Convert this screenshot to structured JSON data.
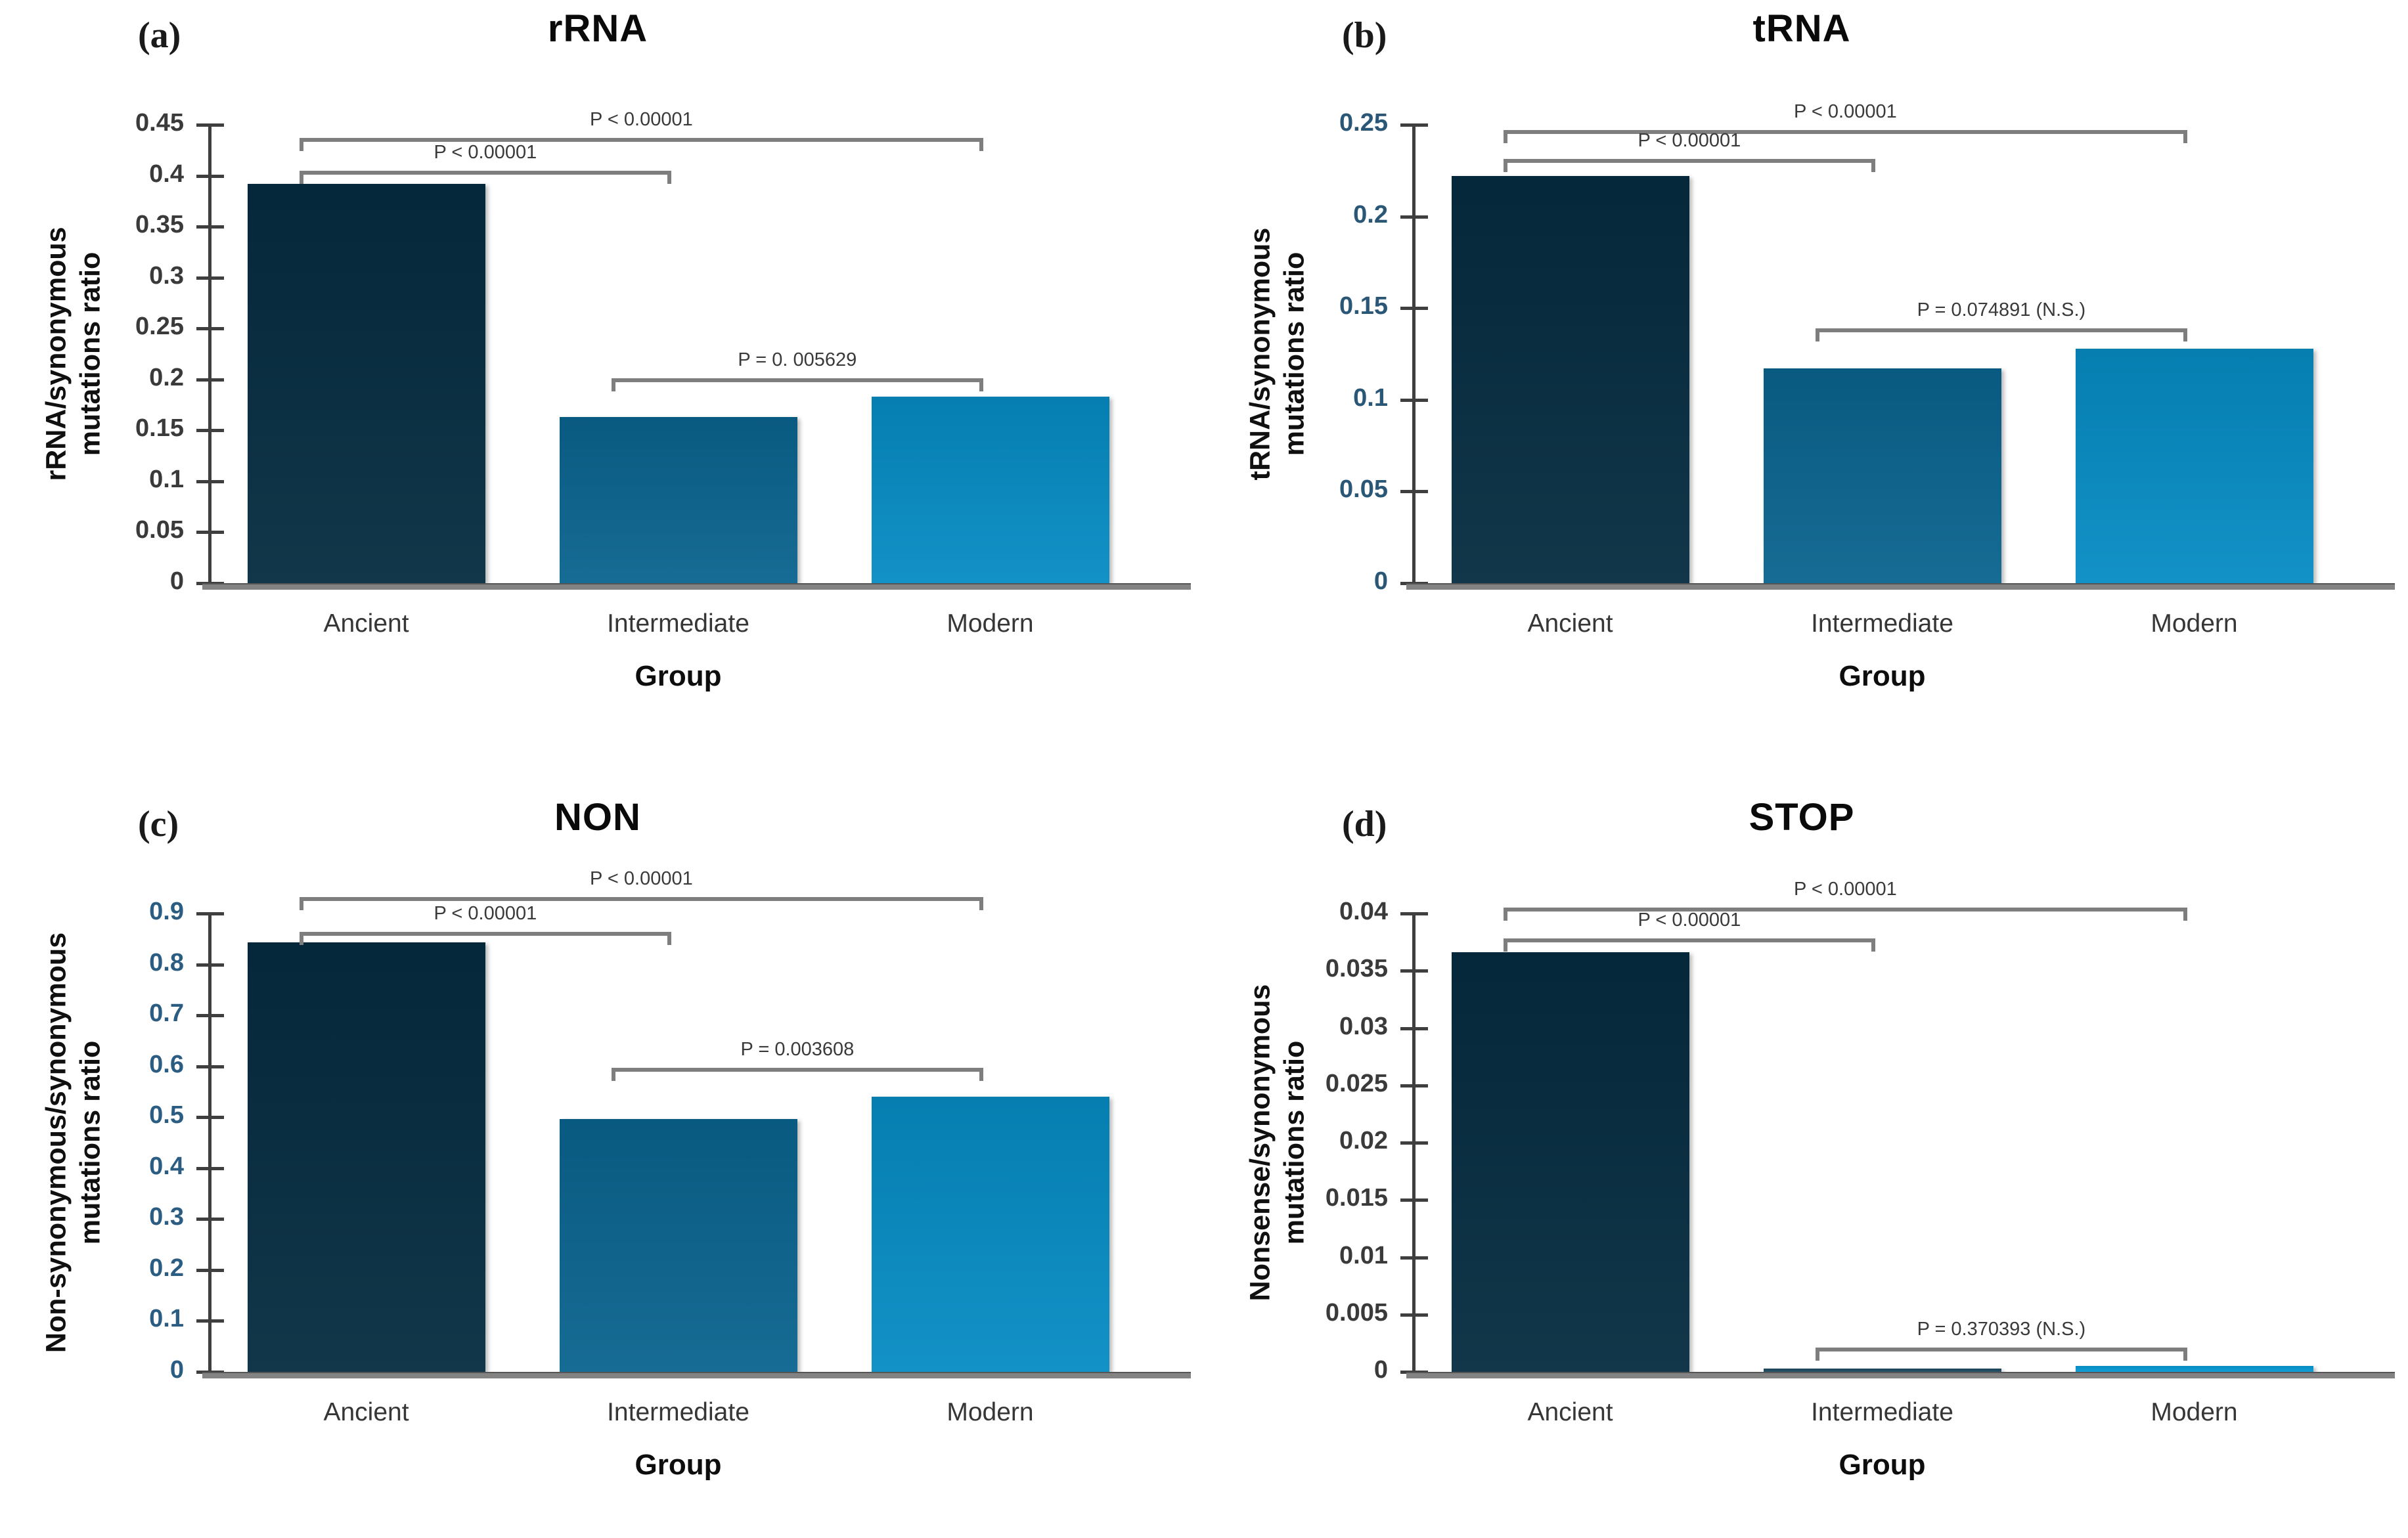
{
  "page": {
    "background_color": "#ffffff"
  },
  "chart_data": [
    {
      "type": "bar",
      "panel_letter": "(a)",
      "title": "rRNA",
      "ylabel": "rRNA/synonymous mutations ratio",
      "ylabel_lines": [
        "rRNA/synonymous",
        "mutations ratio"
      ],
      "xlabel": "Group",
      "categories": [
        "Ancient",
        "Intermediate",
        "Modern"
      ],
      "values": [
        0.392,
        0.163,
        0.183
      ],
      "ylim": [
        0,
        0.45
      ],
      "ytick_values": [
        0,
        0.05,
        0.1,
        0.15,
        0.2,
        0.25,
        0.3,
        0.35,
        0.4,
        0.45
      ],
      "ytick_labels": [
        "0",
        "0.05",
        "0.1",
        "0.15",
        "0.2",
        "0.25",
        "0.3",
        "0.35",
        "0.4",
        "0.45"
      ],
      "tick_label_color": "#3a3a3a",
      "bar_colors": [
        "#052c40",
        "#0a648f",
        "#068cc4"
      ],
      "grid": false,
      "legend": "none",
      "significance_brackets": [
        {
          "from": "Ancient",
          "to": "Modern",
          "label": "P < 0.00001",
          "y": 0.437
        },
        {
          "from": "Ancient",
          "to": "Intermediate",
          "label": "P < 0.00001",
          "y": 0.405
        },
        {
          "from": "Intermediate",
          "to": "Modern",
          "label": "P = 0. 005629",
          "y": 0.201
        }
      ]
    },
    {
      "type": "bar",
      "panel_letter": "(b)",
      "title": "tRNA",
      "ylabel": "tRNA/synonymous mutations ratio",
      "ylabel_lines": [
        "tRNA/synonymous",
        "mutations ratio"
      ],
      "xlabel": "Group",
      "categories": [
        "Ancient",
        "Intermediate",
        "Modern"
      ],
      "values": [
        0.222,
        0.117,
        0.128
      ],
      "ylim": [
        0,
        0.25
      ],
      "ytick_values": [
        0,
        0.05,
        0.1,
        0.15,
        0.2,
        0.25
      ],
      "ytick_labels": [
        "0",
        "0.05",
        "0.1",
        "0.15",
        "0.2",
        "0.25"
      ],
      "tick_label_color": "#2b5777",
      "bar_colors": [
        "#052c40",
        "#0a648f",
        "#068cc4"
      ],
      "grid": false,
      "legend": "none",
      "significance_brackets": [
        {
          "from": "Ancient",
          "to": "Modern",
          "label": "P < 0.00001",
          "y": 0.247
        },
        {
          "from": "Ancient",
          "to": "Intermediate",
          "label": "P < 0.00001",
          "y": 0.2315
        },
        {
          "from": "Intermediate",
          "to": "Modern",
          "label": "P = 0.074891 (N.S.)",
          "y": 0.139
        }
      ]
    },
    {
      "type": "bar",
      "panel_letter": "(c)",
      "title": "NON",
      "ylabel": "Non-synonymous/synonymous mutations ratio",
      "ylabel_lines": [
        "Non-synonymous/synonymous",
        "mutations ratio"
      ],
      "xlabel": "Group",
      "categories": [
        "Ancient",
        "Intermediate",
        "Modern"
      ],
      "values": [
        0.843,
        0.497,
        0.54
      ],
      "ylim": [
        0,
        0.9
      ],
      "ytick_values": [
        0,
        0.1,
        0.2,
        0.3,
        0.4,
        0.5,
        0.6,
        0.7,
        0.8,
        0.9
      ],
      "ytick_labels": [
        "0",
        "0.1",
        "0.2",
        "0.3",
        "0.4",
        "0.5",
        "0.6",
        "0.7",
        "0.8",
        "0.9"
      ],
      "tick_label_color": "#2b5d82",
      "bar_colors": [
        "#052c40",
        "#0a648f",
        "#068cc4"
      ],
      "grid": false,
      "legend": "none",
      "significance_brackets": [
        {
          "from": "Ancient",
          "to": "Modern",
          "label": "P < 0.00001",
          "y": 0.932
        },
        {
          "from": "Ancient",
          "to": "Intermediate",
          "label": "P < 0.00001",
          "y": 0.864
        },
        {
          "from": "Intermediate",
          "to": "Modern",
          "label": "P = 0.003608",
          "y": 0.597
        }
      ]
    },
    {
      "type": "bar",
      "panel_letter": "(d)",
      "title": "STOP",
      "ylabel": "Nonsense/synonymous mutations ratio",
      "ylabel_lines": [
        "Nonsense/synonymous",
        "mutations ratio"
      ],
      "xlabel": "Group",
      "categories": [
        "Ancient",
        "Intermediate",
        "Modern"
      ],
      "values": [
        0.0366,
        0.0002,
        0.0005
      ],
      "ylim": [
        0,
        0.04
      ],
      "ytick_values": [
        0,
        0.005,
        0.01,
        0.015,
        0.02,
        0.025,
        0.03,
        0.035,
        0.04
      ],
      "ytick_labels": [
        "0",
        "0.005",
        "0.01",
        "0.015",
        "0.02",
        "0.025",
        "0.03",
        "0.035",
        "0.04"
      ],
      "tick_label_color": "#3a3a3a",
      "bar_colors": [
        "#052c40",
        "#1d4a62",
        "#069ad6"
      ],
      "grid": false,
      "legend": "none",
      "significance_brackets": [
        {
          "from": "Ancient",
          "to": "Modern",
          "label": "P < 0.00001",
          "y": 0.0405
        },
        {
          "from": "Ancient",
          "to": "Intermediate",
          "label": "P < 0.00001",
          "y": 0.0378
        },
        {
          "from": "Intermediate",
          "to": "Modern",
          "label": "P = 0.370393 (N.S.)",
          "y": 0.0021
        }
      ]
    }
  ]
}
